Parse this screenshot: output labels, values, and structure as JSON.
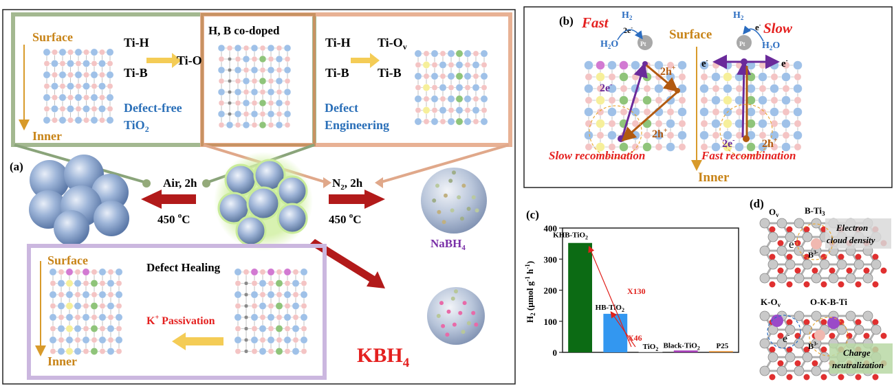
{
  "panels": {
    "a": {
      "label": "(a)",
      "surface": "Surface",
      "inner": "Inner",
      "tih_1": "Ti-H",
      "tio": "Ti-O",
      "tib_1": "Ti-B",
      "defect_free_1": "Defect-free",
      "defect_free_2": "TiO",
      "defect_free_sub": "2",
      "codoped_title": "H, B co-doped",
      "tih_2": "Ti-H",
      "tiov_main": "Ti-O",
      "tiov_sub": "v",
      "tib_2": "Ti-B",
      "tib_3": "Ti-B",
      "defect_eng_1": "Defect",
      "defect_eng_2": "Engineering",
      "air_cond": "Air, 2h",
      "air_temp": "450 ",
      "air_temp_sup": "o",
      "air_temp_unit": "C",
      "n2_main": "N",
      "n2_sub": "2",
      "n2_cond": ", 2h",
      "n2_temp": "450 ",
      "n2_temp_sup": "o",
      "n2_temp_unit": "C",
      "nabh4_main": "NaBH",
      "nabh4_sub": "4",
      "surface_2": "Surface",
      "inner_2": "Inner",
      "defect_healing": "Defect Healing",
      "k_passivation_main": "K",
      "k_passivation_sup": "+",
      "k_passivation_rest": " Passivation",
      "kbh4_main": "KBH",
      "kbh4_sub": "4"
    },
    "b": {
      "label": "(b)",
      "fast": "Fast",
      "slow": "Slow",
      "surface": "Surface",
      "inner": "Inner",
      "h2_left": "H",
      "h2_left_sub": "2",
      "h2o_left": "H",
      "h2o_left_sub": "2",
      "h2o_left_o": "O",
      "two_e_top": "2e",
      "two_e_top_sup": "-",
      "pt_left": "Pt",
      "pt_right": "Pt",
      "h2_right": "H",
      "h2_right_sub": "2",
      "e_right_top": "e",
      "e_right_top_sup": "-",
      "h2o_right": "H",
      "h2o_right_sub": "2",
      "h2o_right_o": "O",
      "two_h_1": "2h",
      "two_h_1_sup": "+",
      "two_e_mid": "2e",
      "two_e_mid_sup": "-",
      "two_h_2": "2h",
      "two_h_2_sup": "+",
      "e_left": "e",
      "e_left_sup": "-",
      "e_right": "e",
      "e_right_sup": "-",
      "two_e_bottom": "2e",
      "two_e_bottom_sup": "-",
      "two_h_3": "2h",
      "two_h_3_sup": "+",
      "slow_recomb": "Slow recombination",
      "fast_recomb": "Fast recombination"
    },
    "c": {
      "label": "(c)",
      "x130": "X130",
      "x46": "X46"
    },
    "d": {
      "label": "(d)",
      "ov_main": "O",
      "ov_sub": "v",
      "bti3_main": "B-Ti",
      "bti3_sub": "3",
      "electron_cloud_1": "Electron",
      "electron_cloud_2": "cloud density",
      "e_top": "e",
      "e_top_sup": "-",
      "b3_top": "B",
      "b3_top_sup": "3-",
      "kov_main": "K-O",
      "kov_sub": "v",
      "okbti": "O-K-B-Ti",
      "e_bottom": "e",
      "e_bottom_sup": "-",
      "b3_bottom": "B",
      "b3_bottom_sup": "3-",
      "charge_1": "Charge",
      "charge_2": "neutralization"
    }
  },
  "chart_data": {
    "type": "bar",
    "categories": [
      "KHB-TiO2",
      "HB-TiO2",
      "TiO2",
      "Black-TiO2",
      "P25"
    ],
    "category_labels": [
      {
        "main": "KHB-TiO",
        "sub": "2"
      },
      {
        "main": "HB-TiO",
        "sub": "2"
      },
      {
        "main": "TiO",
        "sub": "2"
      },
      {
        "main": "Black-TiO",
        "sub": "2"
      },
      {
        "main": "P25",
        "sub": ""
      }
    ],
    "values": [
      352,
      124,
      2,
      6,
      4
    ],
    "colors": [
      "#0c6b14",
      "#3397f0",
      "#c0c0c0",
      "#a33db5",
      "#e0913a"
    ],
    "ylabel_parts": {
      "h": "H",
      "h_sub": "2",
      "rest": " (μmol g",
      "sup": "-1",
      "mid": " h",
      "sup2": "-1",
      "end": ")"
    },
    "ylim": [
      0,
      400
    ],
    "yticks": [
      "0",
      "100",
      "200",
      "300",
      "400"
    ],
    "annotations": [
      "X130",
      "X46"
    ]
  }
}
